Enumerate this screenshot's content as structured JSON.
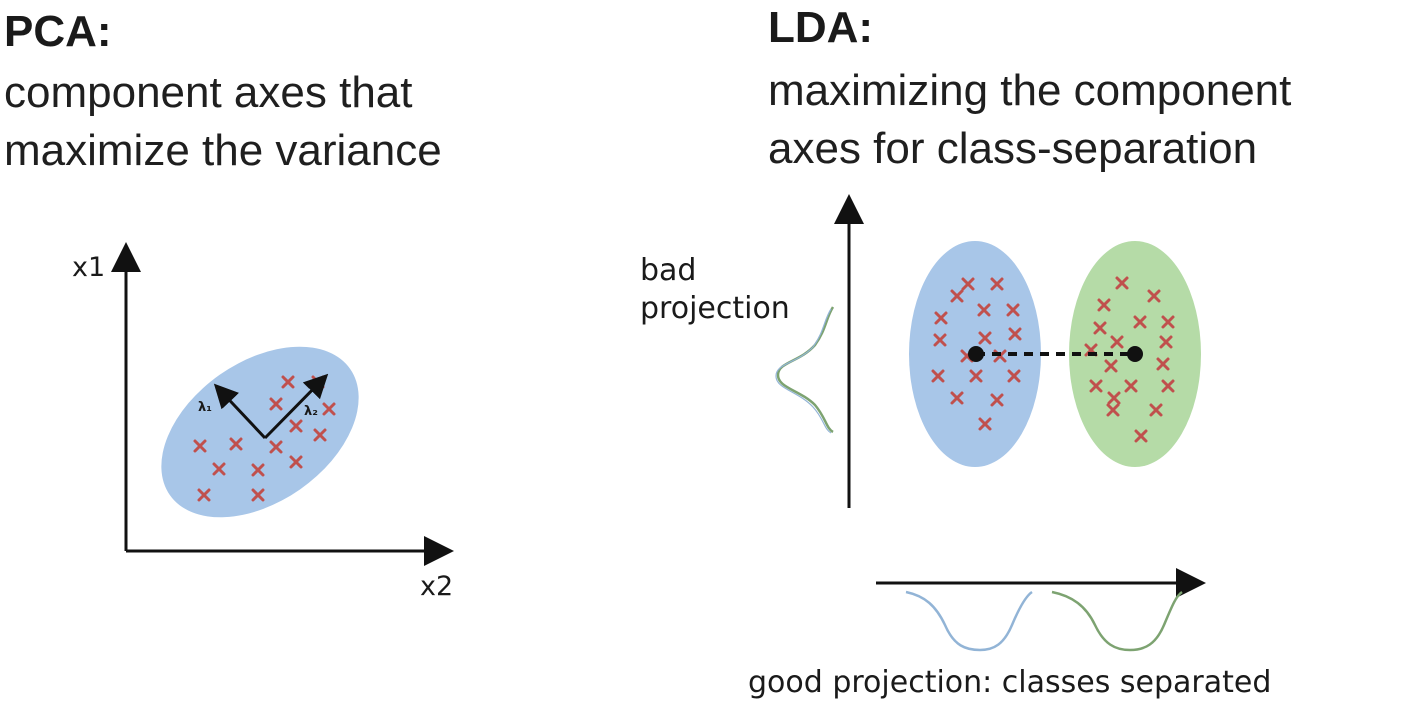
{
  "pca": {
    "title": "PCA:",
    "subtitle_lines": [
      "component axes that",
      "maximize the variance"
    ],
    "axis_y_label": "x1",
    "axis_x_label": "x2",
    "eigen_labels": [
      "λ₁",
      "λ₂"
    ]
  },
  "lda": {
    "title": "LDA:",
    "subtitle_lines": [
      "maximizing the component",
      "axes for class-separation"
    ],
    "bad_projection_lines": [
      "bad",
      "projection"
    ],
    "good_projection_label": "good projection: classes separated"
  },
  "colors": {
    "class_blue": "#a8c6e8",
    "class_green": "#b5dba7",
    "marker_red": "#c0504d",
    "axis": "#111111",
    "curve_blue": "#92b4d6",
    "curve_green": "#7da371"
  }
}
